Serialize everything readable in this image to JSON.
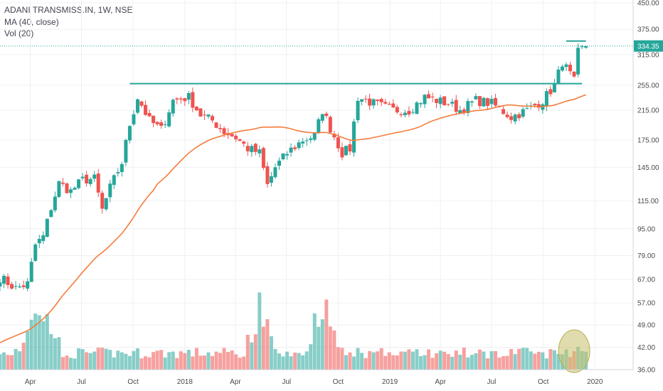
{
  "chart_data": {
    "type": "candlestick",
    "legend_lines": [
      "ADANI TRANSMISS.IN, 1W, NSE",
      "MA (40, close)",
      "Vol (20)"
    ],
    "last_price_label": "334.35",
    "last_price": 334.35,
    "y_axis": {
      "scale": "log",
      "range": [
        36,
        450
      ],
      "tick_labels": [
        "450.00",
        "375.00",
        "315.00",
        "255.00",
        "215.00",
        "175.00",
        "145.00",
        "115.00",
        "95.00",
        "79.00",
        "67.00",
        "57.00",
        "49.00",
        "42.00",
        "36.00"
      ]
    },
    "x_axis": {
      "range": [
        "2017-02-06",
        "2020-03-09"
      ],
      "tick_labels": [
        {
          "label": "Apr",
          "date": "2017-04-01"
        },
        {
          "label": "Jul",
          "date": "2017-07-01"
        },
        {
          "label": "Oct",
          "date": "2017-10-01"
        },
        {
          "label": "2018",
          "date": "2018-01-01"
        },
        {
          "label": "Apr",
          "date": "2018-04-01"
        },
        {
          "label": "Jul",
          "date": "2018-07-01"
        },
        {
          "label": "Oct",
          "date": "2018-10-01"
        },
        {
          "label": "2019",
          "date": "2019-01-01"
        },
        {
          "label": "Apr",
          "date": "2019-04-01"
        },
        {
          "label": "Jul",
          "date": "2019-07-01"
        },
        {
          "label": "Oct",
          "date": "2019-10-01"
        },
        {
          "label": "2020",
          "date": "2020-01-01"
        }
      ]
    },
    "grid": true,
    "colors": {
      "up": "#26a69a",
      "down": "#ef5350",
      "ma": "#f57c3b",
      "level_line": "#26a69a",
      "highlight": "#c9c06a"
    },
    "key_levels": [
      {
        "price": 258,
        "start": "2017-09-25",
        "end": "2019-12-09"
      },
      {
        "price": 346,
        "start": "2019-11-11",
        "end": "2019-12-16"
      }
    ],
    "anchors": [
      [
        "2017-02-06",
        68
      ],
      [
        "2017-03-06",
        63
      ],
      [
        "2017-03-27",
        65
      ],
      [
        "2017-04-10",
        85
      ],
      [
        "2017-04-24",
        90
      ],
      [
        "2017-05-08",
        110
      ],
      [
        "2017-05-22",
        130
      ],
      [
        "2017-06-12",
        123
      ],
      [
        "2017-07-03",
        133
      ],
      [
        "2017-07-24",
        134
      ],
      [
        "2017-08-07",
        108
      ],
      [
        "2017-08-21",
        126
      ],
      [
        "2017-09-11",
        150
      ],
      [
        "2017-09-25",
        195
      ],
      [
        "2017-10-09",
        235
      ],
      [
        "2017-10-30",
        200
      ],
      [
        "2017-11-20",
        188
      ],
      [
        "2017-12-11",
        230
      ],
      [
        "2018-01-08",
        235
      ],
      [
        "2018-01-29",
        208
      ],
      [
        "2018-02-19",
        200
      ],
      [
        "2018-03-12",
        185
      ],
      [
        "2018-04-02",
        178
      ],
      [
        "2018-04-23",
        165
      ],
      [
        "2018-05-14",
        160
      ],
      [
        "2018-05-28",
        128
      ],
      [
        "2018-06-11",
        145
      ],
      [
        "2018-07-02",
        160
      ],
      [
        "2018-07-30",
        175
      ],
      [
        "2018-08-20",
        180
      ],
      [
        "2018-09-03",
        215
      ],
      [
        "2018-09-17",
        190
      ],
      [
        "2018-10-08",
        160
      ],
      [
        "2018-10-22",
        165
      ],
      [
        "2018-11-05",
        235
      ],
      [
        "2018-12-03",
        225
      ],
      [
        "2019-01-07",
        215
      ],
      [
        "2019-02-04",
        215
      ],
      [
        "2019-03-04",
        235
      ],
      [
        "2019-04-15",
        225
      ],
      [
        "2019-05-06",
        215
      ],
      [
        "2019-06-03",
        230
      ],
      [
        "2019-07-01",
        225
      ],
      [
        "2019-08-05",
        205
      ],
      [
        "2019-09-02",
        215
      ],
      [
        "2019-09-30",
        230
      ],
      [
        "2019-10-21",
        255
      ],
      [
        "2019-11-04",
        300
      ],
      [
        "2019-11-25",
        262
      ],
      [
        "2019-12-02",
        320
      ],
      [
        "2019-12-16",
        335
      ]
    ],
    "volume_profile": [
      {
        "date": "2017-04-10",
        "relative": 0.85
      },
      {
        "date": "2017-05-01",
        "relative": 0.75
      },
      {
        "date": "2018-05-14",
        "relative": 0.9
      },
      {
        "date": "2018-09-03",
        "relative": 1.0
      },
      {
        "date": "2019-12-02",
        "relative": 0.35
      }
    ],
    "highlight_region": {
      "date": "2019-11-25",
      "description": "volume spike"
    }
  }
}
